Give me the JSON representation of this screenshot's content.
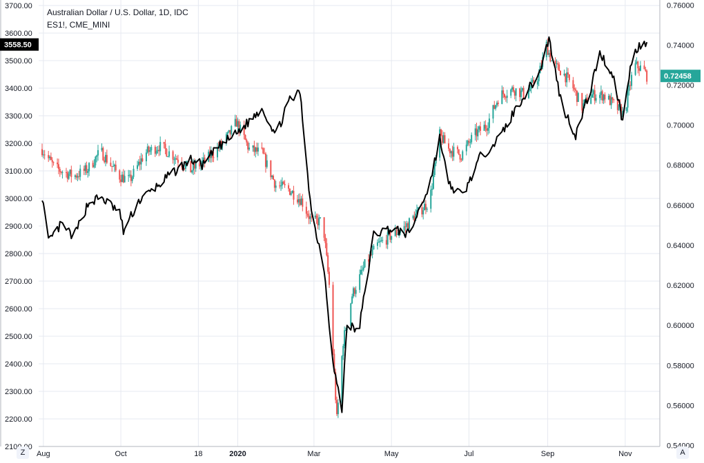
{
  "header": {
    "title": "Australian Dollar / U.S. Dollar, 1D, IDC",
    "overlay_label": "ES1!, CME_MINI"
  },
  "corner_buttons": {
    "left": "Z",
    "right": "A"
  },
  "colors": {
    "up": "#26a69a",
    "down": "#ef5350",
    "overlay": "#000000",
    "grid": "#e6e9f0",
    "last_price_bg": "#26a69a"
  },
  "chart_data": {
    "type": "candlestick",
    "title": "Australian Dollar / U.S. Dollar, 1D, IDC",
    "left_axis": {
      "ticks": [
        "3700.00",
        "3600.00",
        "3500.00",
        "3400.00",
        "3300.00",
        "3200.00",
        "3100.00",
        "3000.00",
        "2900.00",
        "2800.00",
        "2700.00",
        "2600.00",
        "2500.00",
        "2400.00",
        "2300.00",
        "2200.00",
        "2100.00"
      ],
      "range": [
        2100,
        3720
      ],
      "last_value_label": "3558.50"
    },
    "right_axis": {
      "ticks": [
        "0.76000",
        "0.74000",
        "0.72000",
        "0.70000",
        "0.68000",
        "0.66000",
        "0.64000",
        "0.62000",
        "0.60000",
        "0.58000",
        "0.56000",
        "0.54000"
      ],
      "range": [
        0.5395,
        0.7625
      ],
      "last_value_label": "0.72458"
    },
    "x_axis": {
      "tick_labels": [
        "Aug",
        "Oct",
        "18",
        "2020",
        "Mar",
        "May",
        "Jul",
        "Sep",
        "Nov"
      ],
      "bold_labels": [
        "2020"
      ],
      "tick_dates": [
        "2019-08-01",
        "2019-10-01",
        "2019-12-01",
        "2020-01-01",
        "2020-03-01",
        "2020-05-01",
        "2020-07-01",
        "2020-09-01",
        "2020-11-01"
      ]
    },
    "grid": true,
    "series": [
      {
        "name": "AUDUSD",
        "axis": "right",
        "style": "candles",
        "points": [
          [
            "2019-07-31",
            0.688
          ],
          [
            "2019-08-10",
            0.6785
          ],
          [
            "2019-08-25",
            0.6745
          ],
          [
            "2019-09-05",
            0.678
          ],
          [
            "2019-09-15",
            0.687
          ],
          [
            "2019-09-30",
            0.6745
          ],
          [
            "2019-10-08",
            0.6725
          ],
          [
            "2019-10-20",
            0.686
          ],
          [
            "2019-10-31",
            0.6895
          ],
          [
            "2019-11-10",
            0.6855
          ],
          [
            "2019-11-25",
            0.6775
          ],
          [
            "2019-12-05",
            0.6815
          ],
          [
            "2019-12-15",
            0.6875
          ],
          [
            "2019-12-25",
            0.695
          ],
          [
            "2019-12-31",
            0.7015
          ],
          [
            "2020-01-10",
            0.688
          ],
          [
            "2020-01-20",
            0.686
          ],
          [
            "2020-01-31",
            0.67
          ],
          [
            "2020-02-10",
            0.668
          ],
          [
            "2020-02-20",
            0.6625
          ],
          [
            "2020-02-28",
            0.652
          ],
          [
            "2020-03-08",
            0.652
          ],
          [
            "2020-03-13",
            0.62
          ],
          [
            "2020-03-19",
            0.553
          ],
          [
            "2020-03-24",
            0.592
          ],
          [
            "2020-03-31",
            0.615
          ],
          [
            "2020-04-10",
            0.63
          ],
          [
            "2020-04-20",
            0.64
          ],
          [
            "2020-05-01",
            0.645
          ],
          [
            "2020-05-10",
            0.648
          ],
          [
            "2020-05-20",
            0.655
          ],
          [
            "2020-05-31",
            0.662
          ],
          [
            "2020-06-08",
            0.695
          ],
          [
            "2020-06-15",
            0.688
          ],
          [
            "2020-06-25",
            0.685
          ],
          [
            "2020-07-05",
            0.695
          ],
          [
            "2020-07-15",
            0.7
          ],
          [
            "2020-07-25",
            0.715
          ],
          [
            "2020-08-05",
            0.718
          ],
          [
            "2020-08-15",
            0.715
          ],
          [
            "2020-08-25",
            0.725
          ],
          [
            "2020-08-31",
            0.74
          ],
          [
            "2020-09-05",
            0.73
          ],
          [
            "2020-09-12",
            0.727
          ],
          [
            "2020-09-20",
            0.72
          ],
          [
            "2020-09-28",
            0.709
          ],
          [
            "2020-10-05",
            0.715
          ],
          [
            "2020-10-15",
            0.715
          ],
          [
            "2020-10-25",
            0.709
          ],
          [
            "2020-10-31",
            0.705
          ],
          [
            "2020-11-08",
            0.73
          ],
          [
            "2020-11-15",
            0.728
          ],
          [
            "2020-11-18",
            0.72458
          ]
        ]
      },
      {
        "name": "ES1!",
        "axis": "left",
        "style": "line",
        "points": [
          [
            "2019-07-31",
            3010
          ],
          [
            "2019-08-05",
            2840
          ],
          [
            "2019-08-15",
            2905
          ],
          [
            "2019-08-25",
            2860
          ],
          [
            "2019-09-05",
            2980
          ],
          [
            "2019-09-15",
            3005
          ],
          [
            "2019-09-30",
            2950
          ],
          [
            "2019-10-03",
            2880
          ],
          [
            "2019-10-15",
            2990
          ],
          [
            "2019-10-31",
            3050
          ],
          [
            "2019-11-10",
            3090
          ],
          [
            "2019-11-25",
            3140
          ],
          [
            "2019-12-05",
            3120
          ],
          [
            "2019-12-15",
            3180
          ],
          [
            "2019-12-31",
            3235
          ],
          [
            "2020-01-10",
            3280
          ],
          [
            "2020-01-20",
            3330
          ],
          [
            "2020-01-31",
            3230
          ],
          [
            "2020-02-10",
            3350
          ],
          [
            "2020-02-19",
            3385
          ],
          [
            "2020-02-28",
            2950
          ],
          [
            "2020-03-09",
            2750
          ],
          [
            "2020-03-16",
            2400
          ],
          [
            "2020-03-23",
            2230
          ],
          [
            "2020-03-27",
            2550
          ],
          [
            "2020-04-05",
            2510
          ],
          [
            "2020-04-17",
            2870
          ],
          [
            "2020-04-30",
            2890
          ],
          [
            "2020-05-15",
            2870
          ],
          [
            "2020-05-31",
            3050
          ],
          [
            "2020-06-08",
            3220
          ],
          [
            "2020-06-15",
            3050
          ],
          [
            "2020-06-26",
            3010
          ],
          [
            "2020-07-10",
            3150
          ],
          [
            "2020-07-25",
            3220
          ],
          [
            "2020-08-10",
            3350
          ],
          [
            "2020-08-25",
            3450
          ],
          [
            "2020-09-02",
            3580
          ],
          [
            "2020-09-12",
            3340
          ],
          [
            "2020-09-23",
            3230
          ],
          [
            "2020-10-05",
            3400
          ],
          [
            "2020-10-12",
            3530
          ],
          [
            "2020-10-23",
            3440
          ],
          [
            "2020-10-30",
            3280
          ],
          [
            "2020-11-06",
            3500
          ],
          [
            "2020-11-12",
            3560
          ],
          [
            "2020-11-18",
            3558.5
          ]
        ]
      }
    ]
  }
}
